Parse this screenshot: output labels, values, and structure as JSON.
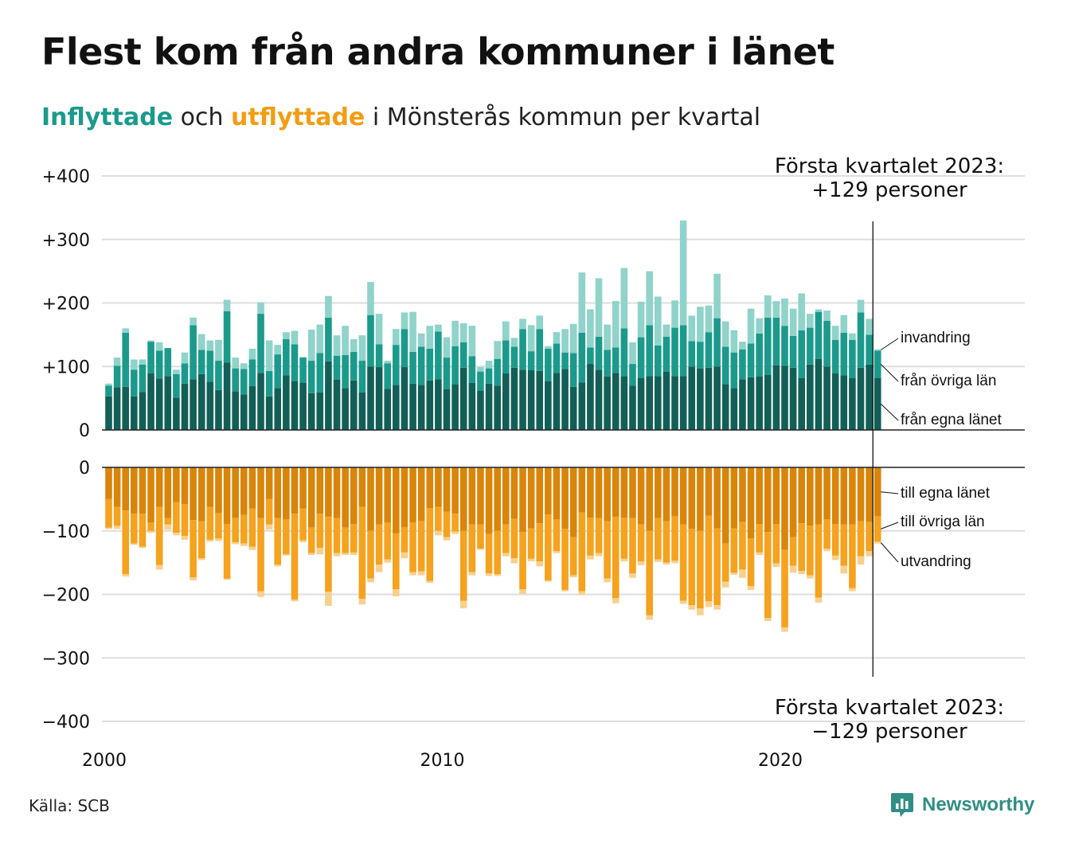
{
  "title": "Flest kom från andra kommuner i länet",
  "subtitle": {
    "in_word": "Inflyttade",
    "and_word": "och",
    "out_word": "utflyttade",
    "rest": "i Mönsterås kommun per kvartal"
  },
  "source": "Källa: SCB",
  "brand": "Newsworthy",
  "colors": {
    "in_local": "#125f57",
    "in_county": "#1b9a8c",
    "in_foreign": "#8fd3ca",
    "out_local": "#d9850a",
    "out_county": "#f5a21e",
    "out_foreign": "#f7d08f",
    "gridline": "#dddddd"
  },
  "chart_data": {
    "type": "bar",
    "stacked": true,
    "x_start": 2000,
    "x_step": "quarter",
    "x_ticks": [
      "2000",
      "2010",
      "2020"
    ],
    "top_panel": {
      "ylim": [
        0,
        400
      ],
      "y_ticks": [
        "+400",
        "+300",
        "+200",
        "+100",
        "0"
      ],
      "series": [
        {
          "name": "från egna länet",
          "values": [
            53,
            67,
            68,
            53,
            60,
            89,
            81,
            85,
            51,
            73,
            80,
            88,
            76,
            63,
            106,
            61,
            56,
            69,
            90,
            53,
            66,
            86,
            77,
            74,
            58,
            59,
            108,
            79,
            66,
            78,
            59,
            100,
            99,
            65,
            71,
            99,
            73,
            71,
            78,
            80,
            64,
            72,
            98,
            74,
            62,
            73,
            70,
            89,
            98,
            95,
            94,
            93,
            77,
            90,
            96,
            68,
            75,
            104,
            95,
            84,
            90,
            85,
            70,
            82,
            85,
            85,
            92,
            85,
            85,
            100,
            97,
            98,
            100,
            72,
            66,
            80,
            83,
            84,
            87,
            102,
            101,
            98,
            82,
            103,
            112,
            100,
            89,
            86,
            82,
            98,
            103,
            82
          ]
        },
        {
          "name": "från övriga län",
          "values": [
            17,
            34,
            85,
            42,
            43,
            50,
            44,
            44,
            37,
            32,
            85,
            38,
            49,
            46,
            81,
            36,
            40,
            42,
            93,
            40,
            53,
            57,
            58,
            40,
            51,
            62,
            69,
            38,
            52,
            45,
            50,
            81,
            36,
            40,
            63,
            60,
            50,
            60,
            50,
            75,
            50,
            60,
            40,
            42,
            30,
            24,
            42,
            52,
            33,
            64,
            30,
            66,
            51,
            46,
            26,
            53,
            78,
            26,
            52,
            42,
            40,
            75,
            34,
            64,
            80,
            48,
            55,
            76,
            80,
            40,
            42,
            56,
            76,
            59,
            56,
            47,
            53,
            68,
            90,
            75,
            63,
            50,
            75,
            58,
            74,
            72,
            53,
            67,
            60,
            87,
            47,
            43
          ]
        },
        {
          "name": "invandring",
          "values": [
            3,
            13,
            7,
            16,
            8,
            2,
            13,
            0,
            7,
            17,
            12,
            25,
            16,
            33,
            18,
            17,
            9,
            17,
            18,
            48,
            15,
            11,
            21,
            1,
            49,
            45,
            34,
            32,
            46,
            20,
            40,
            52,
            48,
            4,
            25,
            26,
            63,
            21,
            36,
            11,
            32,
            40,
            30,
            48,
            7,
            12,
            28,
            30,
            14,
            16,
            41,
            21,
            4,
            18,
            37,
            46,
            95,
            60,
            92,
            40,
            73,
            95,
            34,
            56,
            85,
            77,
            19,
            43,
            165,
            40,
            55,
            42,
            70,
            40,
            35,
            12,
            55,
            24,
            35,
            26,
            43,
            43,
            58,
            22,
            4,
            16,
            22,
            28,
            10,
            20,
            25,
            2
          ]
        }
      ]
    },
    "bottom_panel": {
      "ylim": [
        -400,
        0
      ],
      "y_ticks": [
        "0",
        "−100",
        "−200",
        "−300",
        "−400"
      ],
      "series": [
        {
          "name": "till egna länet",
          "values": [
            -50,
            -62,
            -68,
            -73,
            -73,
            -87,
            -62,
            -80,
            -55,
            -58,
            -83,
            -85,
            -62,
            -72,
            -89,
            -80,
            -75,
            -65,
            -80,
            -50,
            -80,
            -82,
            -73,
            -65,
            -95,
            -73,
            -78,
            -80,
            -95,
            -89,
            -62,
            -100,
            -90,
            -87,
            -104,
            -94,
            -87,
            -84,
            -64,
            -62,
            -70,
            -73,
            -100,
            -90,
            -90,
            -105,
            -100,
            -90,
            -81,
            -102,
            -96,
            -88,
            -74,
            -82,
            -97,
            -110,
            -71,
            -79,
            -80,
            -85,
            -78,
            -79,
            -80,
            -90,
            -100,
            -80,
            -85,
            -77,
            -90,
            -97,
            -100,
            -76,
            -96,
            -120,
            -96,
            -86,
            -112,
            -89,
            -102,
            -89,
            -130,
            -110,
            -88,
            -92,
            -90,
            -82,
            -89,
            -90,
            -90,
            -85,
            -86,
            -77
          ]
        },
        {
          "name": "till övriga län",
          "values": [
            -45,
            -30,
            -100,
            -47,
            -52,
            -13,
            -92,
            -10,
            -48,
            -50,
            -90,
            -58,
            -52,
            -40,
            -86,
            -38,
            -45,
            -60,
            -115,
            -40,
            -73,
            -55,
            -135,
            -50,
            -40,
            -54,
            -118,
            -55,
            -40,
            -45,
            -145,
            -75,
            -63,
            -58,
            -88,
            -40,
            -78,
            -80,
            -115,
            -38,
            -40,
            -28,
            -110,
            -75,
            -38,
            -62,
            -68,
            -45,
            -62,
            -90,
            -48,
            -60,
            -104,
            -50,
            -96,
            -60,
            -124,
            -60,
            -55,
            -90,
            -128,
            -65,
            -87,
            -58,
            -133,
            -65,
            -65,
            -70,
            -120,
            -120,
            -122,
            -135,
            -121,
            -60,
            -70,
            -75,
            -75,
            -45,
            -135,
            -62,
            -122,
            -45,
            -75,
            -78,
            -115,
            -46,
            -50,
            -65,
            -100,
            -55,
            -46,
            -40
          ]
        },
        {
          "name": "utvandring",
          "values": [
            -2,
            -5,
            -4,
            -2,
            -2,
            -3,
            -7,
            -8,
            -4,
            -6,
            -5,
            -3,
            -3,
            -4,
            -2,
            -3,
            -4,
            -5,
            -9,
            -8,
            -3,
            -2,
            -3,
            -3,
            -3,
            -10,
            -22,
            -5,
            -3,
            -4,
            -9,
            -6,
            -12,
            -5,
            -11,
            -9,
            -5,
            -6,
            -3,
            -7,
            -5,
            -4,
            -12,
            -5,
            -2,
            -4,
            -3,
            -5,
            -8,
            -7,
            -4,
            -8,
            -2,
            -3,
            -2,
            -3,
            -6,
            -6,
            -5,
            -6,
            -8,
            -4,
            -7,
            -6,
            -7,
            -4,
            -3,
            -4,
            -5,
            -7,
            -11,
            -9,
            -7,
            -9,
            -3,
            -13,
            -6,
            -4,
            -5,
            -6,
            -7,
            -11,
            -5,
            -5,
            -8,
            -4,
            -7,
            -12,
            -5,
            -13,
            -8,
            -3
          ]
        }
      ]
    },
    "annotations": {
      "top": [
        "Första kvartalet 2023:",
        "+129 personer"
      ],
      "bottom": [
        "Första kvartalet 2023:",
        "−129 personer"
      ]
    },
    "grid": true,
    "legend_placement": "right-end labels"
  }
}
